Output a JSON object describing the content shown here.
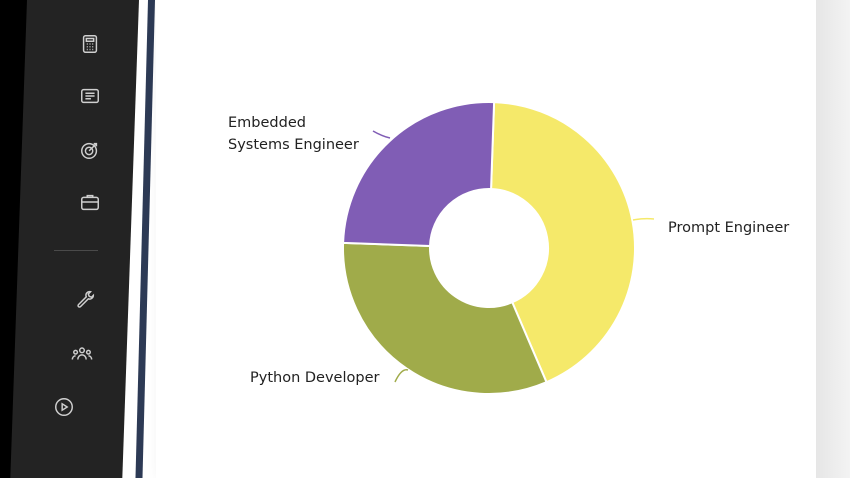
{
  "sidebar": {
    "icons": [
      {
        "name": "calculator-icon"
      },
      {
        "name": "news-icon"
      },
      {
        "name": "target-icon"
      },
      {
        "name": "briefcase-icon"
      },
      {
        "name": "wrench-icon"
      },
      {
        "name": "team-icon"
      },
      {
        "name": "play-icon"
      }
    ]
  },
  "colors": {
    "sidebar": "#232323",
    "prompt_engineer": "#f5e96a",
    "python_developer": "#a0ab4a",
    "embedded_systems_engineer": "#805db5"
  },
  "chart_data": {
    "type": "pie",
    "subtype": "donut",
    "labels": [
      "Prompt Engineer",
      "Python Developer",
      "Embedded Systems Engineer"
    ],
    "label_lines": [
      [
        "Prompt Engineer"
      ],
      [
        "Python Developer"
      ],
      [
        "Embedded",
        "Systems Engineer"
      ]
    ],
    "values": [
      43,
      32,
      25
    ],
    "colors": [
      "#f5e96a",
      "#a0ab4a",
      "#805db5"
    ]
  }
}
